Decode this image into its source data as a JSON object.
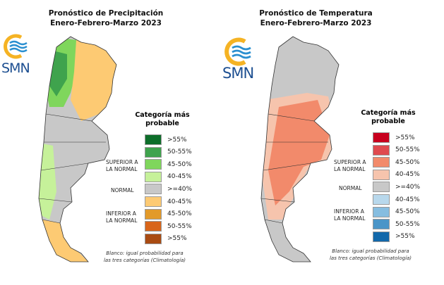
{
  "precip": {
    "title_line1": "Pronóstico de Precipitación",
    "title_line2": "Enero-Febrero-Marzo 2023",
    "logo_text": "SMN",
    "legend_title_1": "Categoría más",
    "legend_title_2": "probable",
    "legend": [
      {
        "label": ">55%",
        "color": "#0d6e2a"
      },
      {
        "label": "50-55%",
        "color": "#3fa34d"
      },
      {
        "label": "45-50%",
        "color": "#7fd65c"
      },
      {
        "label": "40-45%",
        "color": "#c6f19a"
      },
      {
        "label": ">=40%",
        "color": "#c8c8c8"
      },
      {
        "label": "40-45%",
        "color": "#fdca73"
      },
      {
        "label": "45-50%",
        "color": "#e29a2a"
      },
      {
        "label": "50-55%",
        "color": "#d8651a"
      },
      {
        "label": ">55%",
        "color": "#a94b12"
      }
    ],
    "cat_superior": [
      "SUPERIOR A",
      "LA NORMAL"
    ],
    "cat_normal": "NORMAL",
    "cat_inferior": [
      "INFERIOR A",
      "LA NORMAL"
    ],
    "note": [
      "Blanco: igual probabilidad para",
      "las tres categorías (Climatología)"
    ]
  },
  "temp": {
    "title_line1": "Pronóstico de Temperatura",
    "title_line2": "Enero-Febrero-Marzo 2023",
    "logo_text": "SMN",
    "legend_title_1": "Categoría más",
    "legend_title_2": "probable",
    "legend": [
      {
        "label": ">55%",
        "color": "#c8001e"
      },
      {
        "label": "50-55%",
        "color": "#df4a4f"
      },
      {
        "label": "45-50%",
        "color": "#f28a6b"
      },
      {
        "label": "40-45%",
        "color": "#f6c4ad"
      },
      {
        "label": ">=40%",
        "color": "#c8c8c8"
      },
      {
        "label": "40-45%",
        "color": "#b8d8ec"
      },
      {
        "label": "45-50%",
        "color": "#86bde0"
      },
      {
        "label": "50-55%",
        "color": "#4a95c8"
      },
      {
        "label": ">55%",
        "color": "#1268aa"
      }
    ],
    "cat_superior": [
      "SUPERIOR A",
      "LA NORMAL"
    ],
    "cat_normal": "NORMAL",
    "cat_inferior": [
      "INFERIOR A",
      "LA NORMAL"
    ],
    "note": [
      "Blanco: igual probabilidad para",
      "las tres categorías (Climatología)"
    ]
  }
}
